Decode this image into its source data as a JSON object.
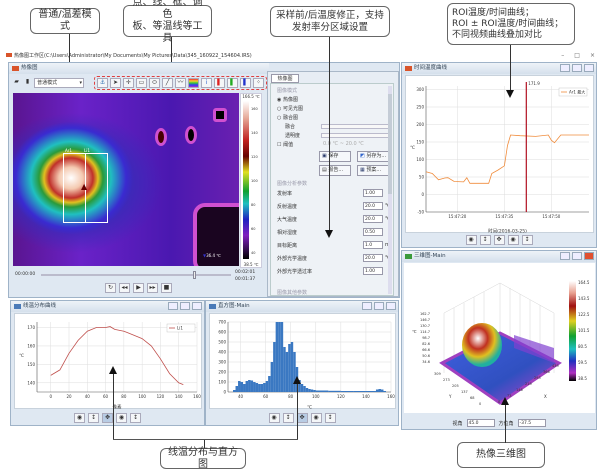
{
  "callouts": {
    "mode": "普通/温差模式",
    "tools": [
      "点、线、框、调色",
      "板、等温线等工具"
    ],
    "correction": [
      "采样前/后温度修正，支持",
      "发射率分区域设置"
    ],
    "roi": [
      "ROI温度/时间曲线；",
      "ROI ± ROI温度/时间曲线；",
      "不同视频曲线叠加对比"
    ],
    "line_hist": "线温分布与直方图",
    "three_d": "热像三维图"
  },
  "app": {
    "title": "热像图工作区(C:\\Users\\Administrator\\My Documents\\My Pictures\\Data\\345_160922_154604.IRS)",
    "window_controls": [
      "–",
      "□",
      "×"
    ]
  },
  "thermal_window": {
    "title": "热像图",
    "mode_select": "普通模式",
    "toolbar_icons": [
      "folder-icon",
      "save-icon",
      "anchor-icon",
      "pointer-icon",
      "spot-icon",
      "rectangle-icon",
      "ellipse-icon",
      "line-icon",
      "polyline-icon",
      "palette-icon",
      "info-icon",
      "isotherm-red-icon",
      "isotherm-green-icon",
      "isotherm-blue-icon",
      "scatter-icon"
    ],
    "colorbar": {
      "max": "166.5 ℃",
      "min": "38.5 ℃",
      "ticks": [
        "160",
        "140",
        "120",
        "100",
        "80",
        "60",
        "40"
      ]
    },
    "labels": {
      "area": "Ar1",
      "line": "Li1",
      "max_label": "℃",
      "min_spot": "36.4 ℃"
    },
    "timeline": {
      "start": "00:00:00",
      "end": "00:02:01",
      "current": "00:01:37",
      "progress": 0.8
    },
    "playback": [
      "loop-icon",
      "prev-icon",
      "play-icon",
      "next-icon",
      "stop-icon"
    ]
  },
  "side_panel": {
    "tab": "热像图",
    "section_image_mode": "图像模式",
    "modes": [
      {
        "label": "热像图",
        "selected": true
      },
      {
        "label": "可见光图",
        "selected": false
      },
      {
        "label": "融合图",
        "selected": false
      }
    ],
    "sliders": [
      "融合",
      "透明度"
    ],
    "threshold": {
      "label": "阈值",
      "checked": false,
      "from": "0.0",
      "to": "20.0",
      "unit": "℃",
      "sep": "~"
    },
    "buttons": [
      "保存",
      "另存为...",
      "报告...",
      "预案..."
    ],
    "section_params": "图像分析参数",
    "params": [
      {
        "label": "发射率",
        "value": "1.00",
        "unit": ""
      },
      {
        "label": "反射温度",
        "value": "20.0",
        "unit": "℃"
      },
      {
        "label": "大气温度",
        "value": "20.0",
        "unit": "℃"
      },
      {
        "label": "相对湿度",
        "value": "0.50",
        "unit": ""
      },
      {
        "label": "目标距离",
        "value": "1.0",
        "unit": "m"
      },
      {
        "label": "外部光学温度",
        "value": "20.0",
        "unit": "℃"
      },
      {
        "label": "外部光学透过率",
        "value": "1.00",
        "unit": ""
      }
    ],
    "section_more": "图像其他参数"
  },
  "chart_data": [
    {
      "id": "time_curve",
      "type": "line",
      "title": "时间温度曲线",
      "xlabel": "时间(2016-03-25)",
      "ylabel": "℃",
      "xlim": [
        "15:47:10",
        "15:48:02"
      ],
      "ylim": [
        -50,
        310
      ],
      "xticks": [
        "15:47:20",
        "15:47:35",
        "15:47:50"
      ],
      "yticks": [
        300,
        250,
        200,
        150,
        100,
        50,
        0,
        -50
      ],
      "cursor": {
        "x": "15:47:42",
        "label": "171.9"
      },
      "series": [
        {
          "name": "Ar1 最大",
          "color": "#f08c3c",
          "x": [
            "15:47:10",
            "15:47:12",
            "15:47:14",
            "15:47:16",
            "15:47:17",
            "15:47:19",
            "15:47:22",
            "15:47:23",
            "15:47:24",
            "15:47:30",
            "15:47:31",
            "15:47:33",
            "15:47:35",
            "15:47:36",
            "15:47:37",
            "15:47:40",
            "15:47:45",
            "15:47:49",
            "15:47:50",
            "15:47:51",
            "15:47:53",
            "15:48:02"
          ],
          "y": [
            65,
            60,
            42,
            47,
            48,
            37,
            36,
            48,
            32,
            32,
            60,
            70,
            82,
            140,
            170,
            168,
            166,
            170,
            155,
            148,
            170,
            170
          ]
        }
      ],
      "grid": true,
      "legend": "top-right"
    },
    {
      "id": "line_profile",
      "type": "line",
      "title": "线温分布曲线",
      "xlabel": "像素",
      "ylabel": "℃",
      "xlim": [
        -15,
        160
      ],
      "ylim": [
        135,
        173
      ],
      "xticks": [
        0,
        20,
        40,
        60,
        80,
        100,
        120,
        140,
        160
      ],
      "yticks": [
        170,
        160,
        150,
        140
      ],
      "series": [
        {
          "name": "Li1",
          "color": "#c0504d",
          "x": [
            0,
            10,
            20,
            30,
            40,
            50,
            60,
            65,
            70,
            80,
            90,
            100,
            110,
            120,
            130,
            140,
            145
          ],
          "y": [
            144,
            147,
            156,
            163,
            168,
            170,
            170,
            170.5,
            169,
            168,
            166,
            164,
            160,
            153,
            145,
            140,
            139
          ]
        }
      ],
      "grid": true,
      "legend": "top-right"
    },
    {
      "id": "histogram",
      "type": "bar",
      "title": "直方图-Main",
      "xlabel": "℃",
      "xlim": [
        30,
        160
      ],
      "ylim": [
        0,
        700
      ],
      "xticks": [
        40,
        60,
        80,
        100,
        120,
        140,
        160
      ],
      "yticks": [
        0,
        100,
        200,
        300,
        400,
        500,
        600,
        700
      ],
      "color": "#3a78c2",
      "bins": [
        34,
        36,
        38,
        40,
        42,
        44,
        46,
        48,
        50,
        52,
        54,
        56,
        58,
        60,
        62,
        64,
        66,
        68,
        70,
        72,
        74,
        76,
        78,
        80,
        82,
        84,
        86,
        88,
        90,
        92,
        94,
        96,
        98,
        100,
        110,
        120,
        130,
        140,
        148,
        150,
        152,
        154
      ],
      "values": [
        20,
        60,
        110,
        100,
        80,
        110,
        120,
        115,
        100,
        90,
        80,
        80,
        90,
        110,
        160,
        300,
        500,
        700,
        800,
        750,
        450,
        400,
        480,
        500,
        400,
        250,
        120,
        80,
        60,
        40,
        30,
        25,
        20,
        15,
        12,
        10,
        10,
        10,
        25,
        30,
        25,
        10
      ],
      "grid": true
    },
    {
      "id": "surface_3d",
      "type": "heatmap",
      "title": "三维图-Main",
      "zlabel": "℃",
      "xlabel": "X",
      "ylabel": "Y",
      "zticks": [
        "162.7",
        "146.7",
        "130.7",
        "114.7",
        "98.7",
        "82.6",
        "66.6",
        "50.6",
        "34.6"
      ],
      "xticks": [
        "0",
        "73",
        "146",
        "219",
        "293",
        "366",
        "439"
      ],
      "yticks": [
        "0",
        "68",
        "137",
        "205",
        "273",
        "309"
      ],
      "colorbar_ticks": [
        "164.5",
        "143.5",
        "122.5",
        "101.5",
        "80.5",
        "59.5",
        "38.5"
      ],
      "elevation": {
        "label": "视角",
        "value": "45.0"
      },
      "azimuth": {
        "label": "方位角",
        "value": "-37.5"
      }
    }
  ]
}
